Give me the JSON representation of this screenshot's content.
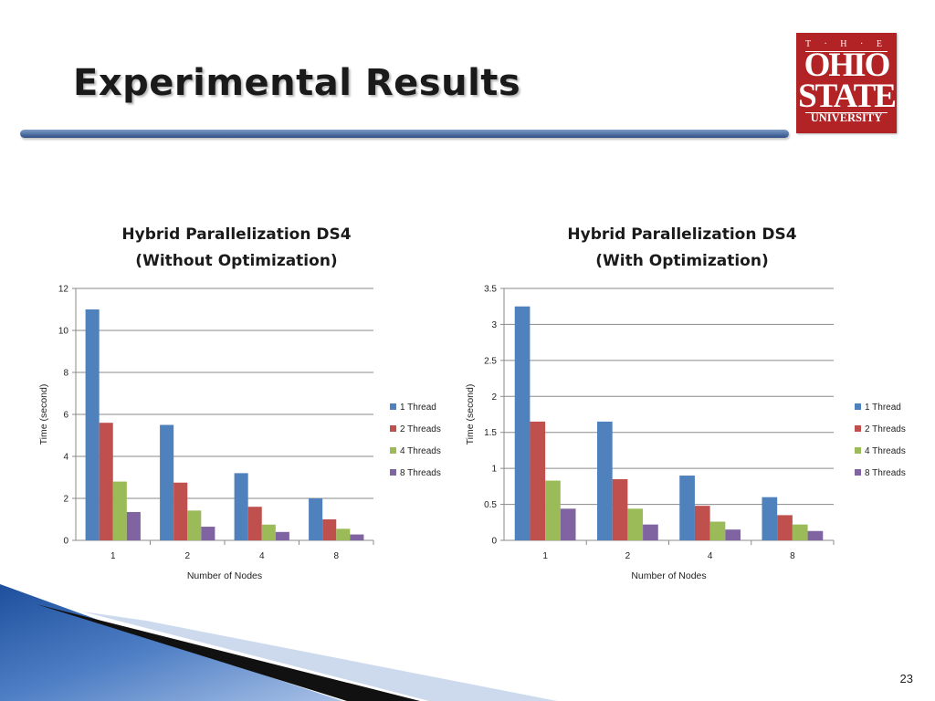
{
  "slide": {
    "title": "Experimental Results",
    "page_number": "23",
    "logo": {
      "line1": "T · H · E",
      "line2": "OHIO",
      "line3": "STATE",
      "line4": "UNIVERSITY"
    },
    "colors": {
      "logo_red": "#b22326",
      "title_bar": "#3a5a90"
    }
  },
  "chart_data": [
    {
      "type": "bar",
      "title": [
        "Hybrid Parallelization DS4",
        "(Without Optimization)"
      ],
      "xlabel": "Number of Nodes",
      "ylabel": "Time (second)",
      "categories": [
        "1",
        "2",
        "4",
        "8"
      ],
      "ylim": [
        0,
        12
      ],
      "yticks": [
        "0",
        "2",
        "4",
        "6",
        "8",
        "10",
        "12"
      ],
      "grid": true,
      "legend_position": "right",
      "series": [
        {
          "name": "1 Thread",
          "color": "#4f81bd",
          "values": [
            11.0,
            5.5,
            3.2,
            2.0
          ]
        },
        {
          "name": "2 Threads",
          "color": "#c0504d",
          "values": [
            5.6,
            2.75,
            1.6,
            1.0
          ]
        },
        {
          "name": "4 Threads",
          "color": "#9bbb59",
          "values": [
            2.8,
            1.42,
            0.75,
            0.55
          ]
        },
        {
          "name": "8 Threads",
          "color": "#8064a2",
          "values": [
            1.35,
            0.65,
            0.4,
            0.28
          ]
        }
      ]
    },
    {
      "type": "bar",
      "title": [
        "Hybrid Parallelization DS4",
        "(With Optimization)"
      ],
      "xlabel": "Number of Nodes",
      "ylabel": "Time (second)",
      "categories": [
        "1",
        "2",
        "4",
        "8"
      ],
      "ylim": [
        0,
        3.5
      ],
      "yticks": [
        "0",
        "0.5",
        "1",
        "1.5",
        "2",
        "2.5",
        "3",
        "3.5"
      ],
      "grid": true,
      "legend_position": "right",
      "series": [
        {
          "name": "1 Thread",
          "color": "#4f81bd",
          "values": [
            3.25,
            1.65,
            0.9,
            0.6
          ]
        },
        {
          "name": "2 Threads",
          "color": "#c0504d",
          "values": [
            1.65,
            0.85,
            0.48,
            0.35
          ]
        },
        {
          "name": "4 Threads",
          "color": "#9bbb59",
          "values": [
            0.83,
            0.44,
            0.26,
            0.22
          ]
        },
        {
          "name": "8 Threads",
          "color": "#8064a2",
          "values": [
            0.44,
            0.22,
            0.15,
            0.13
          ]
        }
      ]
    }
  ]
}
